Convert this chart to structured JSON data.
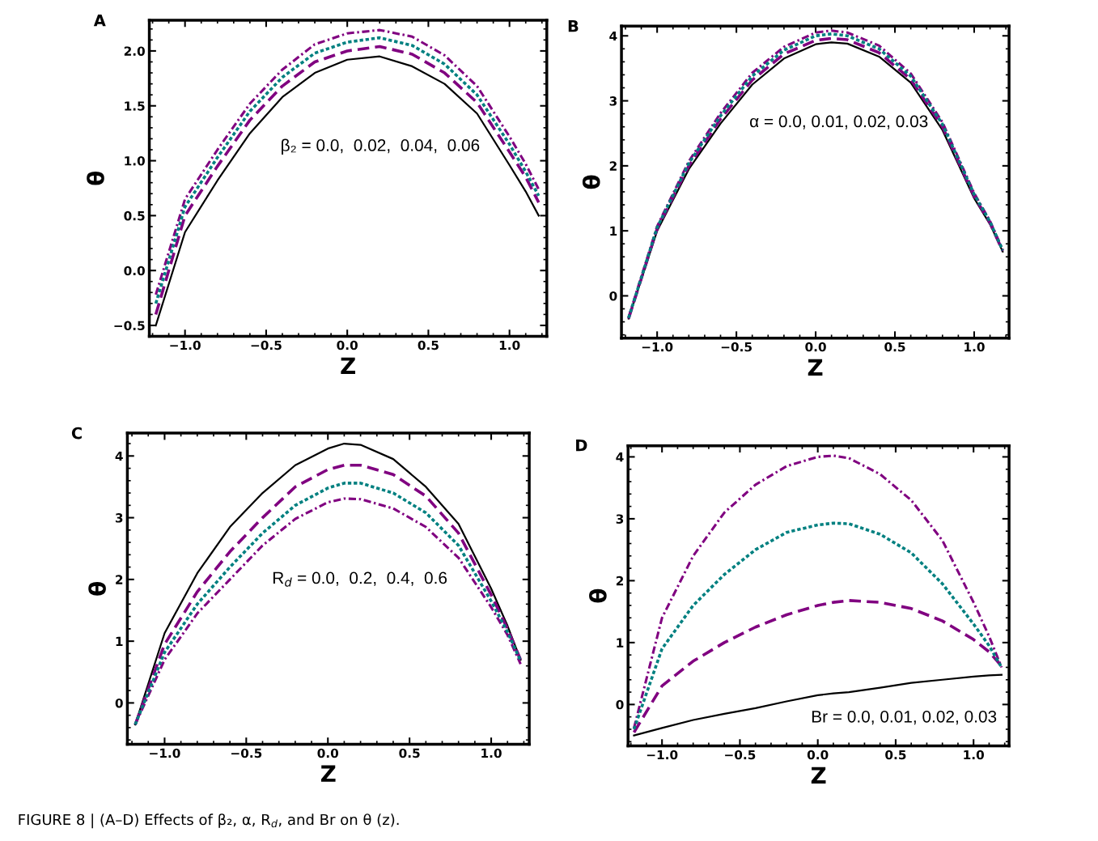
{
  "chart_data": [
    {
      "type": "line",
      "title": "A",
      "xlabel": "Z",
      "ylabel": "θ",
      "xlim": [
        -1.22,
        1.23
      ],
      "ylim": [
        -0.6,
        2.28
      ],
      "xticks": [
        {
          "value": -1.0,
          "label": "−1.0"
        },
        {
          "value": -0.5,
          "label": "−0.5"
        },
        {
          "value": 0.0,
          "label": "0.0"
        },
        {
          "value": 0.5,
          "label": "0.5"
        },
        {
          "value": 1.0,
          "label": "1.0"
        }
      ],
      "yticks": [
        {
          "value": -0.5,
          "label": "−0.5"
        },
        {
          "value": 0.0,
          "label": "0.0"
        },
        {
          "value": 0.5,
          "label": "0.5"
        },
        {
          "value": 1.0,
          "label": "1.0"
        },
        {
          "value": 1.5,
          "label": "1.5"
        },
        {
          "value": 2.0,
          "label": "2.0"
        }
      ],
      "grid": false,
      "legend": false,
      "marker": "none",
      "annotations": [
        "β₂ = 0.0,  0.02,  0.04,  0.06"
      ],
      "x": [
        -1.18,
        -1.0,
        -0.8,
        -0.6,
        -0.4,
        -0.2,
        0.0,
        0.2,
        0.4,
        0.6,
        0.8,
        1.0,
        1.1,
        1.18
      ],
      "series": [
        {
          "color": "#000000",
          "line_style": "solid",
          "values": [
            -0.5,
            0.35,
            0.82,
            1.25,
            1.58,
            1.8,
            1.92,
            1.95,
            1.86,
            1.7,
            1.43,
            0.96,
            0.72,
            0.5
          ]
        },
        {
          "color": "#800080",
          "line_style": "dashed",
          "values": [
            -0.4,
            0.5,
            0.95,
            1.37,
            1.68,
            1.9,
            2.0,
            2.04,
            1.97,
            1.8,
            1.53,
            1.08,
            0.85,
            0.62
          ]
        },
        {
          "color": "#008080",
          "line_style": "dotted",
          "values": [
            -0.3,
            0.58,
            1.03,
            1.45,
            1.76,
            1.98,
            2.08,
            2.12,
            2.05,
            1.88,
            1.6,
            1.15,
            0.9,
            0.68
          ]
        },
        {
          "color": "#800080",
          "line_style": "dashdot",
          "values": [
            -0.22,
            0.65,
            1.1,
            1.52,
            1.83,
            2.06,
            2.16,
            2.19,
            2.13,
            1.96,
            1.68,
            1.22,
            0.97,
            0.74
          ]
        }
      ]
    },
    {
      "type": "line",
      "title": "B",
      "xlabel": "Z",
      "ylabel": "θ",
      "xlim": [
        -1.225,
        1.22
      ],
      "ylim": [
        -0.65,
        4.15
      ],
      "xticks": [
        {
          "value": -1.0,
          "label": "−1.0"
        },
        {
          "value": -0.5,
          "label": "−0.5"
        },
        {
          "value": 0.0,
          "label": "0.0"
        },
        {
          "value": 0.5,
          "label": "0.5"
        },
        {
          "value": 1.0,
          "label": "1.0"
        }
      ],
      "yticks": [
        0,
        1,
        2,
        3,
        4
      ],
      "grid": false,
      "legend": false,
      "marker": "none",
      "annotations": [
        "α = 0.0, 0.01, 0.02, 0.03"
      ],
      "x": [
        -1.18,
        -1.0,
        -0.8,
        -0.6,
        -0.4,
        -0.2,
        0.0,
        0.1,
        0.2,
        0.4,
        0.6,
        0.8,
        1.0,
        1.1,
        1.18
      ],
      "series": [
        {
          "color": "#000000",
          "line_style": "solid",
          "values": [
            -0.35,
            1.0,
            1.95,
            2.65,
            3.25,
            3.65,
            3.87,
            3.9,
            3.88,
            3.68,
            3.28,
            2.55,
            1.5,
            1.1,
            0.68
          ]
        },
        {
          "color": "#800080",
          "line_style": "dashed",
          "values": [
            -0.35,
            1.03,
            2.0,
            2.72,
            3.32,
            3.72,
            3.93,
            3.96,
            3.94,
            3.74,
            3.33,
            2.6,
            1.53,
            1.12,
            0.69
          ]
        },
        {
          "color": "#008080",
          "line_style": "dotted",
          "values": [
            -0.34,
            1.05,
            2.04,
            2.77,
            3.38,
            3.78,
            4.0,
            4.03,
            4.0,
            3.8,
            3.38,
            2.64,
            1.56,
            1.14,
            0.7
          ]
        },
        {
          "color": "#800080",
          "line_style": "dashdot",
          "values": [
            -0.33,
            1.07,
            2.07,
            2.81,
            3.43,
            3.83,
            4.05,
            4.08,
            4.05,
            3.85,
            3.42,
            2.67,
            1.58,
            1.15,
            0.71
          ]
        }
      ]
    },
    {
      "type": "line",
      "title": "C",
      "xlabel": "Z",
      "ylabel": "θ",
      "xlim": [
        -1.228,
        1.233
      ],
      "ylim": [
        -0.67,
        4.37
      ],
      "xticks": [
        {
          "value": -1.0,
          "label": "−1.0"
        },
        {
          "value": -0.5,
          "label": "−0.5"
        },
        {
          "value": 0.0,
          "label": "0.0"
        },
        {
          "value": 0.5,
          "label": "0.5"
        },
        {
          "value": 1.0,
          "label": "1.0"
        }
      ],
      "yticks": [
        0,
        1,
        2,
        3,
        4
      ],
      "grid": false,
      "legend": false,
      "marker": "none",
      "annotations": [
        "R$_{d}$ = 0.0,  0.2,  0.4,  0.6"
      ],
      "x": [
        -1.18,
        -1.0,
        -0.8,
        -0.6,
        -0.4,
        -0.2,
        0.0,
        0.1,
        0.2,
        0.4,
        0.6,
        0.8,
        1.0,
        1.1,
        1.18
      ],
      "series": [
        {
          "color": "#000000",
          "line_style": "solid",
          "values": [
            -0.35,
            1.13,
            2.1,
            2.85,
            3.4,
            3.85,
            4.12,
            4.2,
            4.18,
            3.95,
            3.5,
            2.9,
            1.85,
            1.25,
            0.7
          ]
        },
        {
          "color": "#800080",
          "line_style": "dashed",
          "values": [
            -0.35,
            0.95,
            1.8,
            2.45,
            3.0,
            3.5,
            3.78,
            3.85,
            3.85,
            3.7,
            3.35,
            2.75,
            1.75,
            1.2,
            0.7
          ]
        },
        {
          "color": "#008080",
          "line_style": "dotted",
          "values": [
            -0.35,
            0.82,
            1.6,
            2.2,
            2.75,
            3.2,
            3.48,
            3.56,
            3.56,
            3.4,
            3.08,
            2.55,
            1.65,
            1.15,
            0.68
          ]
        },
        {
          "color": "#800080",
          "line_style": "dashdot",
          "values": [
            -0.35,
            0.7,
            1.45,
            2.0,
            2.55,
            2.98,
            3.25,
            3.31,
            3.3,
            3.15,
            2.85,
            2.35,
            1.55,
            1.1,
            0.63
          ]
        }
      ]
    },
    {
      "type": "line",
      "title": "D",
      "xlabel": "Z",
      "ylabel": "θ",
      "xlim": [
        -1.218,
        1.228
      ],
      "ylim": [
        -0.67,
        4.18
      ],
      "xticks": [
        {
          "value": -1.0,
          "label": "−1.0"
        },
        {
          "value": -0.5,
          "label": "−0.5"
        },
        {
          "value": 0.0,
          "label": "0.0"
        },
        {
          "value": 0.5,
          "label": "0.5"
        },
        {
          "value": 1.0,
          "label": "1.0"
        }
      ],
      "yticks": [
        0,
        1,
        2,
        3,
        4
      ],
      "grid": false,
      "legend": false,
      "marker": "none",
      "annotations": [
        "Br = 0.0, 0.01, 0.02, 0.03",
        "FIGURE 8 | (A–D) Effects of β₂, α, R$_{d}$, and Br on θ (z)."
      ],
      "x": [
        -1.18,
        -1.0,
        -0.8,
        -0.6,
        -0.4,
        -0.2,
        0.0,
        0.1,
        0.2,
        0.4,
        0.6,
        0.8,
        1.0,
        1.1,
        1.18
      ],
      "series": [
        {
          "color": "#000000",
          "line_style": "solid",
          "values": [
            -0.5,
            -0.38,
            -0.25,
            -0.15,
            -0.06,
            0.05,
            0.15,
            0.18,
            0.2,
            0.27,
            0.35,
            0.4,
            0.45,
            0.47,
            0.48
          ]
        },
        {
          "color": "#800080",
          "line_style": "dashed",
          "values": [
            -0.45,
            0.3,
            0.7,
            1.0,
            1.25,
            1.45,
            1.6,
            1.65,
            1.68,
            1.65,
            1.55,
            1.35,
            1.05,
            0.85,
            0.62
          ]
        },
        {
          "color": "#008080",
          "line_style": "dotted",
          "values": [
            -0.4,
            0.9,
            1.6,
            2.1,
            2.5,
            2.78,
            2.9,
            2.93,
            2.92,
            2.75,
            2.45,
            1.95,
            1.3,
            0.95,
            0.6
          ]
        },
        {
          "color": "#800080",
          "line_style": "dashdot",
          "values": [
            -0.38,
            1.4,
            2.4,
            3.1,
            3.55,
            3.85,
            4.0,
            4.02,
            3.98,
            3.72,
            3.3,
            2.65,
            1.65,
            1.1,
            0.6
          ]
        }
      ]
    }
  ]
}
